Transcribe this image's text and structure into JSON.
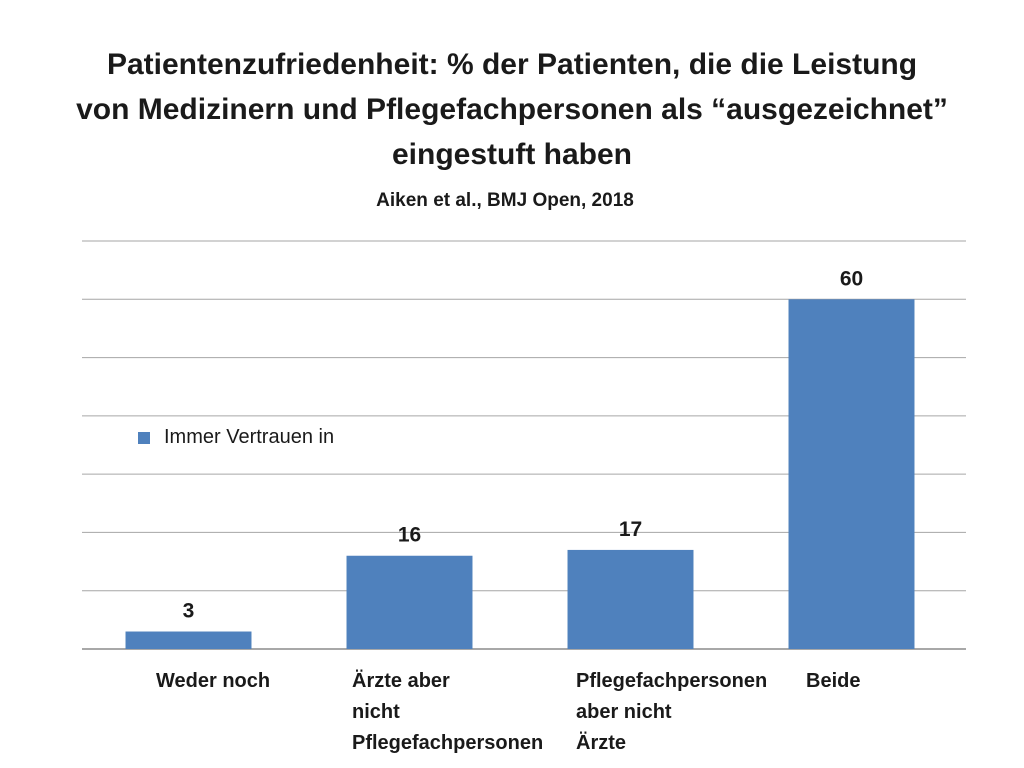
{
  "chart_data": {
    "type": "bar",
    "title": "Patientenzufriedenheit: % der Patienten, die die Leistung von Medizinern und Pflegefachpersonen als “ausgezeichnet” eingestuft haben",
    "title_lines": [
      "Patientenzufriedenheit: % der Patienten, die die Leistung",
      "von Medizinern und Pflegefachpersonen als “ausgezeichnet”",
      "eingestuft haben"
    ],
    "subtitle": "Aiken et al., BMJ Open, 2018",
    "categories": [
      "Weder noch",
      "Ärzte aber\nnicht\nPflegefachpersonen",
      "Pflegefachpersonen\naber nicht\nÄrzte",
      "Beide"
    ],
    "series": [
      {
        "name": "Immer Vertrauen in",
        "values": [
          3,
          16,
          17,
          60
        ],
        "color": "#4f81bd"
      }
    ],
    "data_labels": [
      "3",
      "16",
      "17",
      "60"
    ],
    "ylim": [
      0,
      70
    ],
    "grid": true,
    "legend_placement": "middle-left"
  }
}
